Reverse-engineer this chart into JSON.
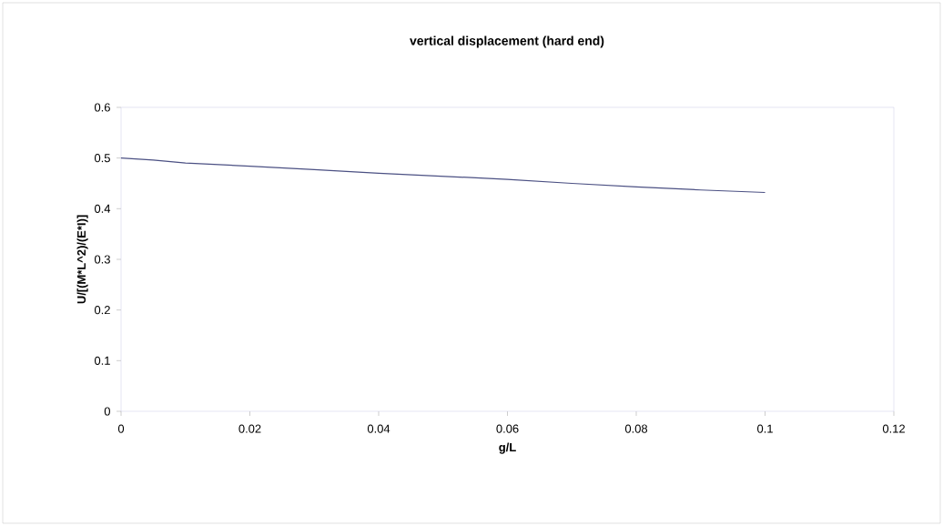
{
  "chart_data": {
    "type": "line",
    "title": "vertical displacement (hard end)",
    "xlabel": "g/L",
    "ylabel": "U/[(M*L^2)/(E*I)]",
    "x": [
      0,
      0.005,
      0.01,
      0.02,
      0.03,
      0.04,
      0.05,
      0.06,
      0.07,
      0.08,
      0.09,
      0.1
    ],
    "series": [
      {
        "color": "#4b5083",
        "values": [
          0.5,
          0.496,
          0.49,
          0.484,
          0.477,
          0.47,
          0.464,
          0.458,
          0.45,
          0.443,
          0.437,
          0.432
        ]
      }
    ],
    "xlim": [
      0,
      0.12
    ],
    "xticks": [
      0,
      0.02,
      0.04,
      0.06,
      0.08,
      0.1,
      0.12
    ],
    "ylim": [
      0,
      0.6
    ],
    "yticks": [
      0,
      0.1,
      0.2,
      0.3,
      0.4,
      0.5,
      0.6
    ],
    "grid": false,
    "legend": false,
    "marker": "none",
    "line_style": "solid"
  }
}
